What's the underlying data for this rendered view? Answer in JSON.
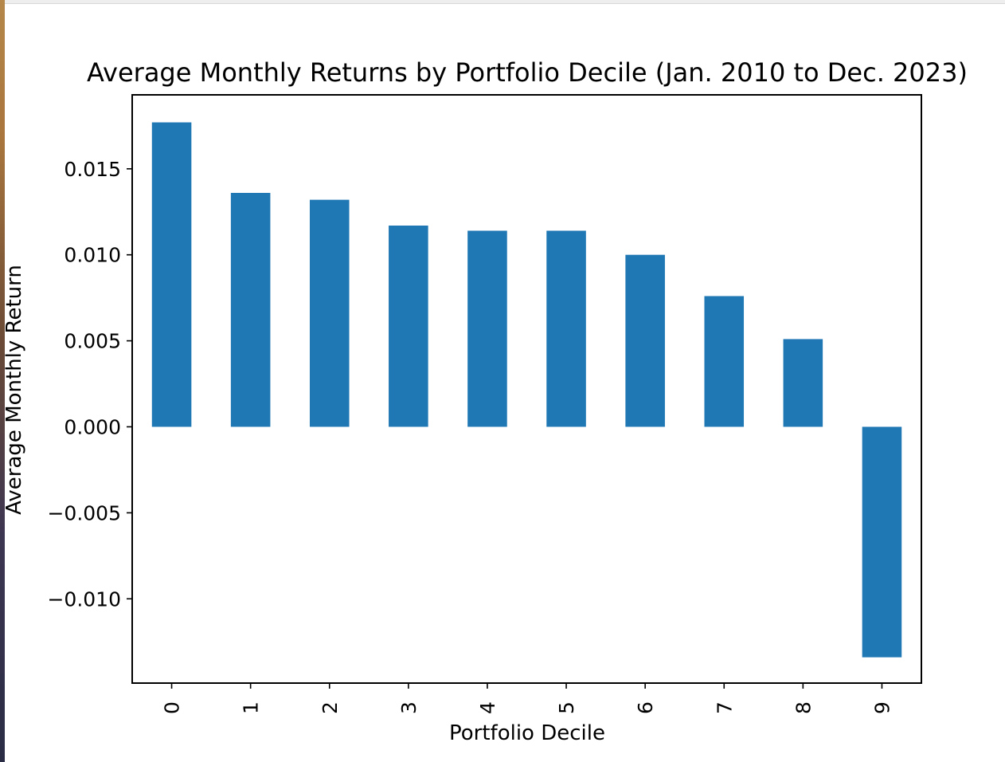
{
  "chart_data": {
    "type": "bar",
    "title": "Average Monthly Returns by Portfolio Decile (Jan. 2010 to Dec. 2023)",
    "xlabel": "Portfolio Decile",
    "ylabel": "Average Monthly Return",
    "categories": [
      "0",
      "1",
      "2",
      "3",
      "4",
      "5",
      "6",
      "7",
      "8",
      "9"
    ],
    "values": [
      0.0177,
      0.0136,
      0.0132,
      0.0117,
      0.0114,
      0.0114,
      0.01,
      0.0076,
      0.0051,
      -0.0134
    ],
    "ylim": [
      -0.0149,
      0.0193
    ],
    "yticks": [
      -0.01,
      -0.005,
      0.0,
      0.005,
      0.01,
      0.015
    ],
    "ytick_labels": [
      "−0.010",
      "−0.005",
      "0.000",
      "0.005",
      "0.010",
      "0.015"
    ],
    "bar_color": "#1f77b4",
    "grid": false,
    "legend": "none"
  }
}
